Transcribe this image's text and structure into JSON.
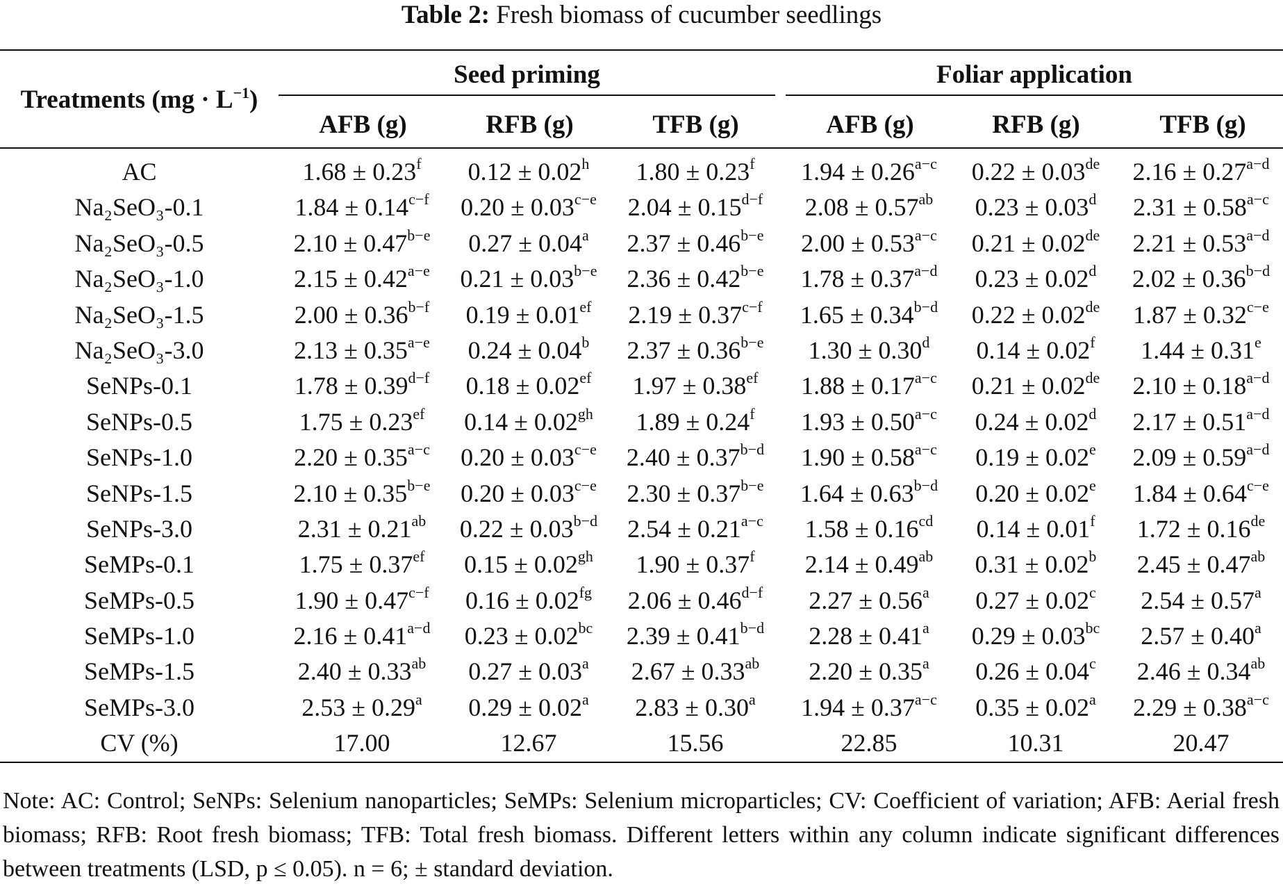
{
  "caption": {
    "label": "Table 2:",
    "text": "Fresh biomass of cucumber seedlings"
  },
  "header": {
    "treatments_label": "Treatments (mg · L",
    "treatments_sup": "−1",
    "treatments_close": ")",
    "groups": [
      "Seed priming",
      "Foliar application"
    ],
    "columns": [
      "AFB (g)",
      "RFB (g)",
      "TFB (g)",
      "AFB (g)",
      "RFB (g)",
      "TFB (g)"
    ]
  },
  "rows": [
    {
      "treatment": "AC",
      "cells": [
        {
          "v": "1.68 ± 0.23",
          "s": "f"
        },
        {
          "v": "0.12 ± 0.02",
          "s": "h"
        },
        {
          "v": "1.80 ± 0.23",
          "s": "f"
        },
        {
          "v": "1.94 ± 0.26",
          "s": "a−c"
        },
        {
          "v": "0.22 ± 0.03",
          "s": "de"
        },
        {
          "v": "2.16 ± 0.27",
          "s": "a−d"
        }
      ]
    },
    {
      "treatment": "Na₂SeO₃-0.1",
      "cells": [
        {
          "v": "1.84 ± 0.14",
          "s": "c−f"
        },
        {
          "v": "0.20 ± 0.03",
          "s": "c−e"
        },
        {
          "v": "2.04 ± 0.15",
          "s": "d−f"
        },
        {
          "v": "2.08 ± 0.57",
          "s": "ab"
        },
        {
          "v": "0.23 ± 0.03",
          "s": "d"
        },
        {
          "v": "2.31 ± 0.58",
          "s": "a−c"
        }
      ]
    },
    {
      "treatment": "Na₂SeO₃-0.5",
      "cells": [
        {
          "v": "2.10 ± 0.47",
          "s": "b−e"
        },
        {
          "v": "0.27 ± 0.04",
          "s": "a"
        },
        {
          "v": "2.37 ± 0.46",
          "s": "b−e"
        },
        {
          "v": "2.00 ± 0.53",
          "s": "a−c"
        },
        {
          "v": "0.21 ± 0.02",
          "s": "de"
        },
        {
          "v": "2.21 ± 0.53",
          "s": "a−d"
        }
      ]
    },
    {
      "treatment": "Na₂SeO₃-1.0",
      "cells": [
        {
          "v": "2.15 ± 0.42",
          "s": "a−e"
        },
        {
          "v": "0.21 ± 0.03",
          "s": "b−e"
        },
        {
          "v": "2.36 ± 0.42",
          "s": "b−e"
        },
        {
          "v": "1.78 ± 0.37",
          "s": "a−d"
        },
        {
          "v": "0.23 ± 0.02",
          "s": "d"
        },
        {
          "v": "2.02 ± 0.36",
          "s": "b−d"
        }
      ]
    },
    {
      "treatment": "Na₂SeO₃-1.5",
      "cells": [
        {
          "v": "2.00 ± 0.36",
          "s": "b−f"
        },
        {
          "v": "0.19 ± 0.01",
          "s": "ef"
        },
        {
          "v": "2.19 ± 0.37",
          "s": "c−f"
        },
        {
          "v": "1.65 ± 0.34",
          "s": "b−d"
        },
        {
          "v": "0.22 ± 0.02",
          "s": "de"
        },
        {
          "v": "1.87 ± 0.32",
          "s": "c−e"
        }
      ]
    },
    {
      "treatment": "Na₂SeO₃-3.0",
      "cells": [
        {
          "v": "2.13 ± 0.35",
          "s": "a−e"
        },
        {
          "v": "0.24 ± 0.04",
          "s": "b"
        },
        {
          "v": "2.37 ± 0.36",
          "s": "b−e"
        },
        {
          "v": "1.30 ± 0.30",
          "s": "d"
        },
        {
          "v": "0.14 ± 0.02",
          "s": "f"
        },
        {
          "v": "1.44 ± 0.31",
          "s": "e"
        }
      ]
    },
    {
      "treatment": "SeNPs-0.1",
      "cells": [
        {
          "v": "1.78 ± 0.39",
          "s": "d−f"
        },
        {
          "v": "0.18 ± 0.02",
          "s": "ef"
        },
        {
          "v": "1.97 ± 0.38",
          "s": "ef"
        },
        {
          "v": "1.88 ± 0.17",
          "s": "a−c"
        },
        {
          "v": "0.21 ± 0.02",
          "s": "de"
        },
        {
          "v": "2.10 ± 0.18",
          "s": "a−d"
        }
      ]
    },
    {
      "treatment": "SeNPs-0.5",
      "cells": [
        {
          "v": "1.75 ± 0.23",
          "s": "ef"
        },
        {
          "v": "0.14 ± 0.02",
          "s": "gh"
        },
        {
          "v": "1.89 ± 0.24",
          "s": "f"
        },
        {
          "v": "1.93 ± 0.50",
          "s": "a−c"
        },
        {
          "v": "0.24 ± 0.02",
          "s": "d"
        },
        {
          "v": "2.17 ± 0.51",
          "s": "a−d"
        }
      ]
    },
    {
      "treatment": "SeNPs-1.0",
      "cells": [
        {
          "v": "2.20 ± 0.35",
          "s": "a−c"
        },
        {
          "v": "0.20 ± 0.03",
          "s": "c−e"
        },
        {
          "v": "2.40 ± 0.37",
          "s": "b−d"
        },
        {
          "v": "1.90 ± 0.58",
          "s": "a−c"
        },
        {
          "v": "0.19 ± 0.02",
          "s": "e"
        },
        {
          "v": "2.09 ± 0.59",
          "s": "a−d"
        }
      ]
    },
    {
      "treatment": "SeNPs-1.5",
      "cells": [
        {
          "v": "2.10 ± 0.35",
          "s": "b−e"
        },
        {
          "v": "0.20 ± 0.03",
          "s": "c−e"
        },
        {
          "v": "2.30 ± 0.37",
          "s": "b−e"
        },
        {
          "v": "1.64 ± 0.63",
          "s": "b−d"
        },
        {
          "v": "0.20 ± 0.02",
          "s": "e"
        },
        {
          "v": "1.84 ± 0.64",
          "s": "c−e"
        }
      ]
    },
    {
      "treatment": "SeNPs-3.0",
      "cells": [
        {
          "v": "2.31 ± 0.21",
          "s": "ab"
        },
        {
          "v": "0.22 ± 0.03",
          "s": "b−d"
        },
        {
          "v": "2.54 ± 0.21",
          "s": "a−c"
        },
        {
          "v": "1.58 ± 0.16",
          "s": "cd"
        },
        {
          "v": "0.14 ± 0.01",
          "s": "f"
        },
        {
          "v": "1.72 ± 0.16",
          "s": "de"
        }
      ]
    },
    {
      "treatment": "SeMPs-0.1",
      "cells": [
        {
          "v": "1.75 ± 0.37",
          "s": "ef"
        },
        {
          "v": "0.15 ± 0.02",
          "s": "gh"
        },
        {
          "v": "1.90 ± 0.37",
          "s": "f"
        },
        {
          "v": "2.14 ± 0.49",
          "s": "ab"
        },
        {
          "v": "0.31 ± 0.02",
          "s": "b"
        },
        {
          "v": "2.45 ± 0.47",
          "s": "ab"
        }
      ]
    },
    {
      "treatment": "SeMPs-0.5",
      "cells": [
        {
          "v": "1.90 ± 0.47",
          "s": "c−f"
        },
        {
          "v": "0.16 ± 0.02",
          "s": "fg"
        },
        {
          "v": "2.06 ± 0.46",
          "s": "d−f"
        },
        {
          "v": "2.27 ± 0.56",
          "s": "a"
        },
        {
          "v": "0.27 ± 0.02",
          "s": "c"
        },
        {
          "v": "2.54 ± 0.57",
          "s": "a"
        }
      ]
    },
    {
      "treatment": "SeMPs-1.0",
      "cells": [
        {
          "v": "2.16 ± 0.41",
          "s": "a−d"
        },
        {
          "v": "0.23 ± 0.02",
          "s": "bc"
        },
        {
          "v": "2.39 ± 0.41",
          "s": "b−d"
        },
        {
          "v": "2.28 ± 0.41",
          "s": "a"
        },
        {
          "v": "0.29 ± 0.03",
          "s": "bc"
        },
        {
          "v": "2.57 ± 0.40",
          "s": "a"
        }
      ]
    },
    {
      "treatment": "SeMPs-1.5",
      "cells": [
        {
          "v": "2.40 ± 0.33",
          "s": "ab"
        },
        {
          "v": "0.27 ± 0.03",
          "s": "a"
        },
        {
          "v": "2.67 ± 0.33",
          "s": "ab"
        },
        {
          "v": "2.20 ± 0.35",
          "s": "a"
        },
        {
          "v": "0.26 ± 0.04",
          "s": "c"
        },
        {
          "v": "2.46 ± 0.34",
          "s": "ab"
        }
      ]
    },
    {
      "treatment": "SeMPs-3.0",
      "cells": [
        {
          "v": "2.53 ± 0.29",
          "s": "a"
        },
        {
          "v": "0.29 ± 0.02",
          "s": "a"
        },
        {
          "v": "2.83 ± 0.30",
          "s": "a"
        },
        {
          "v": "1.94 ± 0.37",
          "s": "a−c"
        },
        {
          "v": "0.35 ± 0.02",
          "s": "a"
        },
        {
          "v": "2.29 ± 0.38",
          "s": "a−c"
        }
      ]
    },
    {
      "treatment": "CV (%)",
      "cells": [
        {
          "v": "17.00",
          "s": ""
        },
        {
          "v": "12.67",
          "s": ""
        },
        {
          "v": "15.56",
          "s": ""
        },
        {
          "v": "22.85",
          "s": ""
        },
        {
          "v": "10.31",
          "s": ""
        },
        {
          "v": "20.47",
          "s": ""
        }
      ]
    }
  ],
  "note": "Note: AC: Control; SeNPs: Selenium nanoparticles; SeMPs: Selenium microparticles; CV: Coefficient of variation; AFB: Aerial fresh biomass; RFB: Root fresh biomass; TFB: Total fresh biomass. Different letters within any column indicate significant differences between treatments (LSD, p ≤ 0.05). n = 6; ± standard deviation."
}
